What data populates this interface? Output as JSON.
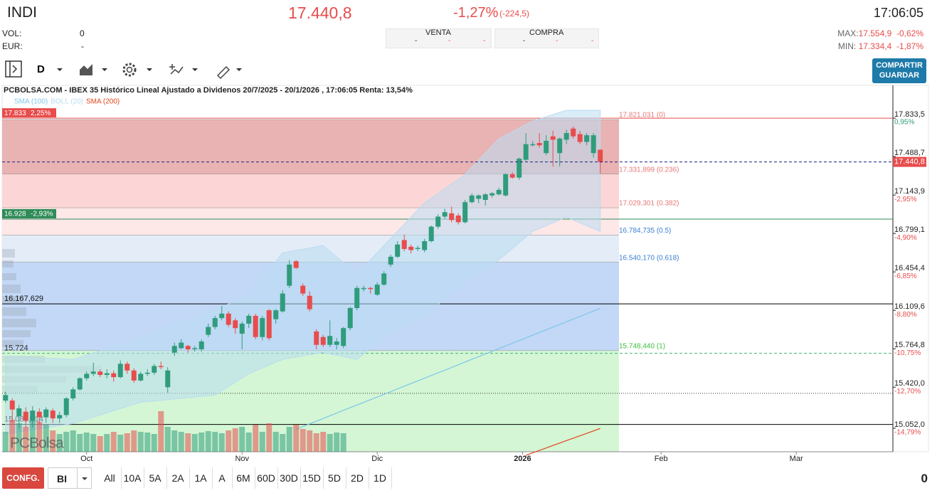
{
  "header": {
    "symbol": "INDI",
    "price": "17.440,8",
    "change_pct": "-1,27%",
    "change_abs": "(-224,5)",
    "time": "17:06:05",
    "vol_label": "VOL:",
    "vol": "0",
    "eur_label": "EUR:",
    "eur": "-",
    "venta": "VENTA",
    "compra": "COMPRA",
    "venta_cells": [
      "-",
      "-",
      "-"
    ],
    "compra_cells": [
      "-",
      "-",
      "-"
    ],
    "max_label": "MAX:",
    "max": "17.554,9",
    "max_pct": "-0,62%",
    "min_label": "MIN:",
    "min": "17.334,4",
    "min_pct": "-1,87%"
  },
  "toolbar": {
    "period": "D",
    "share": "COMPARTIR",
    "save": "GUARDAR"
  },
  "chart_data": {
    "type": "candlestick",
    "title": "PCBOLSA.COM - IBEX 35 Histórico Lineal Ajustado a Dividenos 20/7/2025 - 20/1/2026 , 17:06:05 Renta: 13,54%",
    "watermark": "PCBolsa",
    "up_color": "#2f9c7c",
    "down_color": "#e84c4c",
    "x": [
      0,
      1,
      2,
      3,
      4,
      5,
      6,
      7,
      8,
      9,
      10,
      11,
      12,
      13,
      14,
      15,
      16,
      17,
      18,
      19,
      20,
      21,
      22,
      23,
      24,
      25,
      26,
      27,
      28,
      29,
      30,
      31,
      32,
      33,
      34,
      35,
      36,
      37,
      38,
      39,
      40,
      41,
      42,
      43,
      44,
      45,
      46,
      47,
      48,
      49,
      50,
      51,
      52,
      53,
      54,
      55,
      56,
      57,
      58,
      59,
      60,
      61,
      62,
      63,
      64,
      65,
      66,
      67,
      68,
      69,
      70,
      71,
      72,
      73,
      74,
      75,
      76,
      77,
      78,
      79,
      80,
      81,
      82,
      83,
      84,
      85,
      86,
      87,
      88
    ],
    "open": [
      15300,
      15300,
      15160,
      15200,
      15120,
      15200,
      15150,
      15210,
      15140,
      15170,
      15320,
      15400,
      15500,
      15540,
      15560,
      15530,
      15545,
      15510,
      15630,
      15570,
      15480,
      15540,
      15550,
      15610,
      15420,
      15730,
      15770,
      15790,
      15760,
      15760,
      15890,
      15960,
      16040,
      16080,
      16020,
      15900,
      15990,
      16060,
      15870,
      16110,
      16030,
      16100,
      16330,
      16550,
      16330,
      16240,
      15920,
      15870,
      15800,
      15800,
      15790,
      15950,
      16130,
      16300,
      16310,
      16250,
      16340,
      16520,
      16590,
      16740,
      16680,
      16660,
      16650,
      16730,
      16860,
      16950,
      16980,
      16960,
      16900,
      17080,
      17110,
      17100,
      17140,
      17150,
      17140,
      17330,
      17300,
      17460,
      17590,
      17610,
      17520,
      17670,
      17520,
      17640,
      17740,
      17690,
      17620,
      17520,
      17550
    ],
    "high": [
      15380,
      15320,
      15260,
      15240,
      15250,
      15230,
      15240,
      15230,
      15200,
      15330,
      15420,
      15510,
      15560,
      15640,
      15580,
      15580,
      15570,
      15660,
      15650,
      15590,
      15560,
      15580,
      15630,
      15650,
      15600,
      15820,
      15850,
      15800,
      15790,
      15850,
      15990,
      16060,
      16150,
      16100,
      16040,
      16010,
      16080,
      16080,
      16060,
      16120,
      16120,
      16290,
      16560,
      16560,
      16350,
      16280,
      15940,
      15890,
      16020,
      15860,
      15960,
      16140,
      16330,
      16330,
      16320,
      16360,
      16460,
      16610,
      16730,
      16790,
      16700,
      16690,
      16750,
      16870,
      16970,
      17020,
      17040,
      16980,
      17100,
      17160,
      17150,
      17160,
      17170,
      17210,
      17340,
      17350,
      17480,
      17700,
      17630,
      17700,
      17680,
      17720,
      17660,
      17730,
      17760,
      17720,
      17700,
      17700,
      17554.9
    ],
    "low": [
      15280,
      15100,
      15050,
      15060,
      15060,
      15080,
      15100,
      15100,
      15100,
      15150,
      15300,
      15390,
      15480,
      15520,
      15510,
      15500,
      15470,
      15500,
      15540,
      15460,
      15470,
      15520,
      15530,
      15580,
      15370,
      15700,
      15760,
      15730,
      15740,
      15740,
      15870,
      15940,
      16020,
      15960,
      15900,
      15760,
      15950,
      15850,
      15840,
      15840,
      15990,
      16090,
      16310,
      16480,
      16240,
      16100,
      15760,
      15780,
      15780,
      15760,
      15770,
      15930,
      16110,
      16280,
      16260,
      16240,
      16330,
      16500,
      16580,
      16640,
      16620,
      16640,
      16630,
      16720,
      16840,
      16930,
      16900,
      16880,
      16890,
      17070,
      17070,
      17050,
      17120,
      17140,
      17130,
      17290,
      17280,
      17450,
      17580,
      17570,
      17500,
      17400,
      17400,
      17600,
      17650,
      17600,
      17590,
      17480,
      17334.4
    ],
    "close": [
      15350,
      15220,
      15230,
      15120,
      15210,
      15150,
      15220,
      15140,
      15170,
      15320,
      15400,
      15500,
      15540,
      15560,
      15530,
      15545,
      15510,
      15630,
      15570,
      15480,
      15540,
      15550,
      15610,
      15600,
      15570,
      15790,
      15820,
      15760,
      15770,
      15830,
      15960,
      16040,
      16080,
      15980,
      15950,
      15990,
      16060,
      15870,
      16040,
      15860,
      16110,
      16260,
      16520,
      16490,
      16260,
      16120,
      15800,
      15800,
      15880,
      15830,
      15950,
      16130,
      16310,
      16310,
      16300,
      16340,
      16440,
      16590,
      16700,
      16660,
      16650,
      16670,
      16730,
      16860,
      16950,
      16990,
      16920,
      16900,
      17080,
      17140,
      17140,
      17150,
      17160,
      17190,
      17330,
      17300,
      17470,
      17600,
      17600,
      17590,
      17630,
      17640,
      17650,
      17700,
      17670,
      17620,
      17680,
      17680,
      17440.8
    ],
    "volume": [
      28,
      45,
      40,
      35,
      50,
      42,
      38,
      30,
      25,
      28,
      30,
      25,
      27,
      25,
      22,
      25,
      28,
      24,
      26,
      30,
      28,
      27,
      25,
      57,
      35,
      30,
      28,
      26,
      25,
      27,
      29,
      28,
      26,
      30,
      33,
      35,
      27,
      38,
      28,
      40,
      28,
      25,
      35,
      38,
      32,
      30,
      26,
      28,
      25,
      27,
      26,
      null,
      null,
      null,
      null,
      null,
      null,
      null,
      null,
      null,
      null,
      null,
      null,
      null,
      null,
      null,
      null,
      null,
      null,
      null,
      null,
      null,
      null,
      null,
      null,
      null,
      null,
      null,
      null,
      null,
      null,
      null,
      null,
      null,
      null,
      null,
      null,
      null,
      null
    ],
    "series": [
      {
        "name": "SMA (100)",
        "color": "#7cc6ea",
        "values": [
          null,
          null,
          null,
          null,
          null,
          null,
          null,
          null,
          null,
          null,
          null,
          null,
          null,
          null,
          null,
          null,
          null,
          null,
          null,
          null,
          null,
          null,
          null,
          null,
          null,
          null,
          null,
          null,
          null,
          null,
          null,
          null,
          null,
          null,
          null,
          null,
          null,
          null,
          null,
          null,
          null,
          null,
          null,
          15043,
          15067,
          15091,
          15115,
          15139,
          15164,
          15188,
          15212,
          15236,
          15260,
          15284,
          15308,
          15332,
          15356,
          15380,
          15405,
          15429,
          15453,
          15477,
          15501,
          15525,
          15549,
          15573,
          15597,
          15621,
          15646,
          15670,
          15694,
          15718,
          15742,
          15766,
          15790,
          15814,
          15838,
          15862,
          15887,
          15911,
          15935,
          15959,
          15983,
          16007,
          16031,
          16055,
          16079,
          16103,
          16128
        ]
      },
      {
        "name": "BOLL (20)",
        "color": "#b9dcf2",
        "x": [
          0,
          10,
          20,
          31,
          36,
          41,
          47,
          52,
          57,
          62,
          68,
          73,
          78,
          83,
          88
        ],
        "upper": [
          15700,
          15669,
          15860,
          16116,
          16243,
          16626,
          16690,
          16435,
          16754,
          17073,
          17329,
          17648,
          17808,
          17904,
          17904
        ],
        "lower": [
          15000,
          15094,
          15285,
          15349,
          15541,
          15669,
          15732,
          15669,
          15924,
          16052,
          16371,
          16563,
          16818,
          16946,
          16818
        ]
      },
      {
        "name": "SMA (200)",
        "color": "#e0461c",
        "values": [
          null,
          null,
          null,
          null,
          null,
          null,
          null,
          null,
          null,
          null,
          null,
          null,
          null,
          null,
          null,
          null,
          null,
          null,
          null,
          null,
          null,
          null,
          null,
          null,
          null,
          null,
          null,
          null,
          null,
          null,
          null,
          null,
          null,
          null,
          null,
          null,
          null,
          null,
          null,
          null,
          null,
          null,
          null,
          null,
          null,
          null,
          null,
          null,
          null,
          null,
          null,
          null,
          null,
          null,
          null,
          null,
          null,
          null,
          null,
          null,
          null,
          null,
          null,
          null,
          null,
          null,
          null,
          null,
          null,
          null,
          null,
          null,
          null,
          null,
          null,
          null,
          null,
          14809,
          14831,
          14853,
          14875,
          14897,
          14919,
          14941,
          14963,
          14984,
          15006,
          15028,
          15050
        ]
      }
    ],
    "xlim": [
      -0.5,
      131.3
    ],
    "xticks": [
      {
        "value": 12,
        "label": "Oct"
      },
      {
        "value": 35,
        "label": "Nov"
      },
      {
        "value": 55,
        "label": "Dic"
      },
      {
        "value": 76.5,
        "label": "2026"
      },
      {
        "value": 97,
        "label": "Feb"
      },
      {
        "value": 117,
        "label": "Mar"
      }
    ],
    "ylim": [
      14841,
      17936
    ],
    "yticks": [
      {
        "value": 17833.5,
        "label": "17.833,5"
      },
      {
        "value": 17488.7,
        "label": "17.488,7"
      },
      {
        "value": 17143.9,
        "label": "17.143,9"
      },
      {
        "value": 16799.1,
        "label": "16.799,1"
      },
      {
        "value": 16454.4,
        "label": "16.454,4"
      },
      {
        "value": 16109.6,
        "label": "16.109,6"
      },
      {
        "value": 15764.8,
        "label": "15.764,8"
      },
      {
        "value": 15420.0,
        "label": "15.420,0"
      },
      {
        "value": 15052.0,
        "label": "15.052,0"
      }
    ],
    "ytick_pct": [
      "0,95%",
      null,
      "-2,95%",
      "-4,90%",
      "-6,85%",
      "-8,80%",
      "-10,75%",
      "-12,70%",
      "-14,79%"
    ],
    "ytick_pct_colors": [
      "#2f9c7c",
      "#e84c4c"
    ],
    "fib": [
      {
        "value": 17821.031,
        "label": "17.821,031 (0)",
        "color": "#e87878",
        "zone_color": "#e9b3b3"
      },
      {
        "value": 17331.899,
        "label": "17.331,899 (0.236)",
        "color": "#e87878",
        "zone_color": "#fcd6d6"
      },
      {
        "value": 17029.301,
        "label": "17.029,301 (0.382)",
        "color": "#e87878",
        "zone_color": "#fde7e7"
      },
      {
        "value": 16784.735,
        "label": "16.784,735 (0.5)",
        "color": "#3a7fd0",
        "zone_color": "#e3ecf7"
      },
      {
        "value": 16540.17,
        "label": "16.540,170 (0.618)",
        "color": "#3a7fd0",
        "zone_color": "#c3d8f6"
      },
      {
        "value": 15748.44,
        "label": "15.748,440 (1)",
        "color": "#3cbf3c",
        "zone_color": "#d4f6d4"
      }
    ],
    "levels": [
      {
        "value": 17833,
        "label": "17.833",
        "pct": "2,25%",
        "color": "#e84c4c",
        "style": "solid"
      },
      {
        "value": 16928,
        "label": "16.928",
        "pct": "-2,93%",
        "color": "#2e8b57",
        "style": "solid"
      },
      {
        "value": 16167.629,
        "label": "16.167,629",
        "color": "#000000",
        "style": "solid"
      },
      {
        "value": 15724,
        "label": "15.724",
        "color": "#3cb371",
        "style": "dashed"
      },
      {
        "value": 15365,
        "color": "#333333",
        "style": "dotted"
      },
      {
        "value": 15085.814,
        "label": "15.085,814",
        "color": "#000000",
        "style": "solid"
      }
    ],
    "last_price": {
      "value": 17440.8,
      "label": "17.440,8",
      "color": "#1a237e"
    }
  },
  "footer": {
    "config": "CONFG.",
    "mode": "BI",
    "ranges": [
      "All",
      "10A",
      "5A",
      "2A",
      "1A",
      "A",
      "6M",
      "60D",
      "30D",
      "15D",
      "5D",
      "2D",
      "1D"
    ],
    "count": "0"
  }
}
